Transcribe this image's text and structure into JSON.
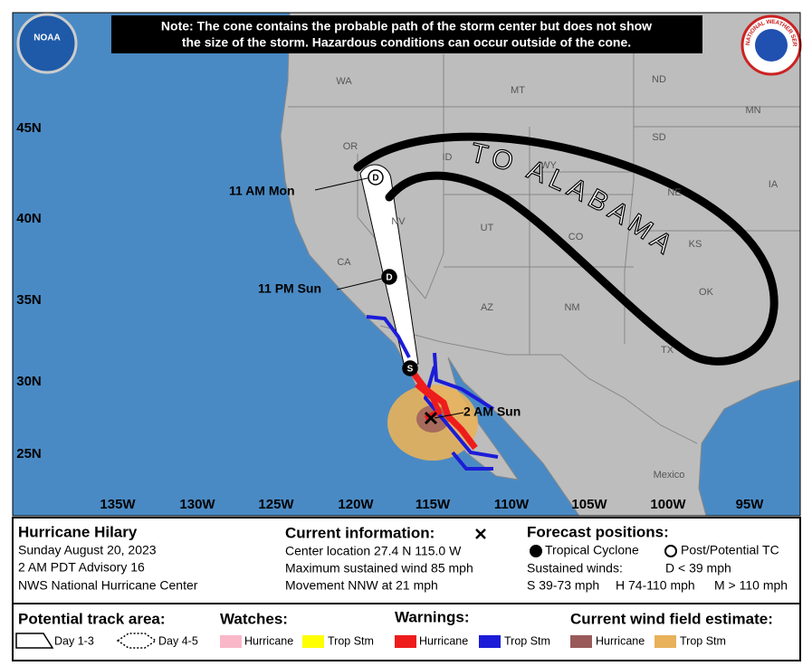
{
  "header": {
    "note": [
      "Note: The cone contains the probable path of the storm center but does not show",
      "the size of the storm. Hazardous conditions can occur outside of the cone."
    ]
  },
  "logos": {
    "noaa": "NOAA",
    "nws": "NATIONAL WEATHER SERVICE"
  },
  "map": {
    "lat_labels": [
      "45N",
      "40N",
      "35N",
      "30N",
      "25N"
    ],
    "lon_labels": [
      "135W",
      "130W",
      "125W",
      "120W",
      "115W",
      "110W",
      "105W",
      "100W",
      "95W"
    ],
    "region_labels": [
      "WA",
      "MT",
      "ND",
      "MN",
      "OR",
      "ID",
      "SD",
      "WY",
      "NE",
      "IA",
      "NV",
      "UT",
      "CO",
      "KS",
      "CA",
      "AZ",
      "NM",
      "OK",
      "TX",
      "Mexico"
    ],
    "forecast_labels": [
      "11 AM Mon",
      "11 PM Sun",
      "2 AM Sun"
    ],
    "markers": [
      "D",
      "D",
      "S"
    ],
    "annotation": "TO ALABAMA"
  },
  "info": {
    "storm": {
      "title": "Hurricane Hilary",
      "date": "Sunday August 20, 2023",
      "advisory": "2 AM PDT Advisory 16",
      "center": "NWS National Hurricane Center"
    },
    "current": {
      "heading": "Current information:",
      "location": "Center location 27.4 N 115.0 W",
      "wind": "Maximum sustained wind 85 mph",
      "movement": "Movement NNW at 21 mph"
    },
    "forecast": {
      "heading": "Forecast positions:",
      "tropical_cyclone": "Tropical Cyclone",
      "post_tc": "Post/Potential TC",
      "sustained_winds": "Sustained winds:",
      "d": "D < 39 mph",
      "s": "S 39-73 mph",
      "h": "H 74-110 mph",
      "m": "M > 110 mph"
    }
  },
  "legend": {
    "track_heading": "Potential track area:",
    "day13": "Day 1-3",
    "day45": "Day 4-5",
    "watches_heading": "Watches:",
    "watch_hurricane": "Hurricane",
    "watch_ts": "Trop Stm",
    "warnings_heading": "Warnings:",
    "warn_hurricane": "Hurricane",
    "warn_ts": "Trop Stm",
    "wind_heading": "Current wind field estimate:",
    "wind_hurricane": "Hurricane",
    "wind_ts": "Trop Stm"
  }
}
